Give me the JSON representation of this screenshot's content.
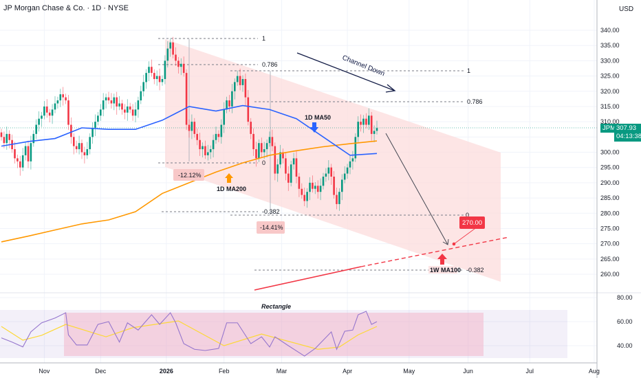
{
  "header": {
    "title": "JP Morgan Chase & Co. · 1D · NYSE",
    "currency": "USD"
  },
  "price_tag": {
    "symbol": "JPM",
    "price": "307.93",
    "countdown": "04:13:38"
  },
  "colors": {
    "up": "#089981",
    "down": "#f23645",
    "ma50": "#2962ff",
    "ma200": "#ff9800",
    "ma100w": "#f23645",
    "channel": "#fcdcdc",
    "rsi": "#7e57c2",
    "rsi_ma": "#fdd835"
  },
  "chart_data": {
    "type": "candlestick",
    "symbol": "JPM",
    "timeframe": "1D",
    "ylim": [
      257,
      343
    ],
    "y_ticks": [
      "340.00",
      "335.00",
      "330.00",
      "325.00",
      "320.00",
      "315.00",
      "310.00",
      "300.00",
      "295.00",
      "290.00",
      "285.00",
      "280.00",
      "275.00",
      "270.00",
      "265.00",
      "260.00"
    ],
    "x_ticks": [
      "Nov",
      "Dec",
      "2026",
      "Feb",
      "Mar",
      "Apr",
      "May",
      "Jun",
      "Jul",
      "Aug"
    ],
    "closes": [
      305,
      303,
      306,
      304,
      301,
      298,
      297,
      295,
      299,
      302,
      297,
      303,
      306,
      309,
      311,
      312,
      315,
      313,
      312,
      314,
      316,
      317,
      319,
      318,
      317,
      309,
      305,
      302,
      301,
      303,
      300,
      299,
      301,
      305,
      308,
      310,
      312,
      314,
      317,
      318,
      317,
      316,
      318,
      315,
      316,
      314,
      313,
      315,
      314,
      312,
      314,
      317,
      320,
      323,
      326,
      328,
      326,
      324,
      325,
      323,
      324,
      330,
      334,
      336,
      332,
      330,
      328,
      329,
      326,
      309,
      307,
      310,
      306,
      304,
      301,
      302,
      299,
      300,
      301,
      304,
      306,
      305,
      309,
      314,
      317,
      315,
      320,
      323,
      325,
      322,
      324,
      318,
      310,
      306,
      301,
      298,
      303,
      300,
      301,
      303,
      305,
      302,
      293,
      296,
      300,
      298,
      293,
      290,
      296,
      298,
      292,
      288,
      286,
      284,
      287,
      290,
      288,
      289,
      287,
      289,
      292,
      293,
      295,
      292,
      286,
      283,
      287,
      291,
      293,
      295,
      297,
      298,
      305,
      310,
      309,
      311,
      309,
      312,
      306,
      307,
      307.93
    ],
    "ma50_every10": [
      302,
      303.5,
      304.5,
      308,
      307.5,
      307.5,
      310.5,
      315,
      313.5,
      315.3,
      314,
      311,
      305,
      299,
      299.6
    ],
    "ma200_every10": [
      270.6,
      272.5,
      274.5,
      276.5,
      277.8,
      280.5,
      286.5,
      290,
      293.5,
      296.5,
      299,
      300.5,
      301.8,
      302.8,
      303.7
    ],
    "annotations": {
      "fib1": [
        "1",
        "0.786",
        "0",
        "-0.382"
      ],
      "fib2": [
        "1",
        "0.786",
        "0",
        "-0.382"
      ],
      "drop1": "-12.12%",
      "drop2": "-14.41%",
      "ma200_label": "1D MA200",
      "ma50_label": "1D MA50",
      "ma100w_label": "1W MA100",
      "channel_label": "Channel Down",
      "target": "270.00",
      "rsi_box_label": "Rectangle"
    },
    "rsi": {
      "y_ticks": [
        "80.00",
        "60.00",
        "40.00"
      ],
      "points": [
        [
          0,
          46.5
        ],
        [
          4,
          43
        ],
        [
          8,
          39
        ],
        [
          11,
          51.5
        ],
        [
          15,
          59
        ],
        [
          20,
          63
        ],
        [
          24,
          67.4
        ],
        [
          25,
          49
        ],
        [
          28,
          40.6
        ],
        [
          32,
          40.6
        ],
        [
          36,
          57.7
        ],
        [
          40,
          60
        ],
        [
          44,
          43
        ],
        [
          47,
          59
        ],
        [
          51,
          53
        ],
        [
          56,
          65.7
        ],
        [
          59,
          57.7
        ],
        [
          63,
          67.4
        ],
        [
          65,
          59
        ],
        [
          68,
          41.7
        ],
        [
          72,
          37
        ],
        [
          76,
          36
        ],
        [
          81,
          37.7
        ],
        [
          84,
          59
        ],
        [
          88,
          59
        ],
        [
          93,
          41.7
        ],
        [
          97,
          47.4
        ],
        [
          100,
          38.9
        ],
        [
          102,
          47.4
        ],
        [
          107,
          40
        ],
        [
          113,
          31.4
        ],
        [
          117,
          37.7
        ],
        [
          123,
          51.5
        ],
        [
          125,
          37
        ],
        [
          128,
          52
        ],
        [
          131,
          53
        ],
        [
          133,
          65.7
        ],
        [
          136,
          68.6
        ],
        [
          138,
          57.7
        ],
        [
          140,
          60
        ]
      ],
      "ma_points": [
        [
          0,
          56
        ],
        [
          8,
          44.6
        ],
        [
          15,
          48.6
        ],
        [
          24,
          57.7
        ],
        [
          39,
          47.4
        ],
        [
          49,
          55
        ],
        [
          66,
          60.6
        ],
        [
          83,
          40
        ],
        [
          97,
          49.7
        ],
        [
          118,
          37
        ],
        [
          126,
          38.9
        ],
        [
          133,
          49
        ],
        [
          140,
          56
        ]
      ],
      "band": [
        30,
        70
      ]
    }
  }
}
